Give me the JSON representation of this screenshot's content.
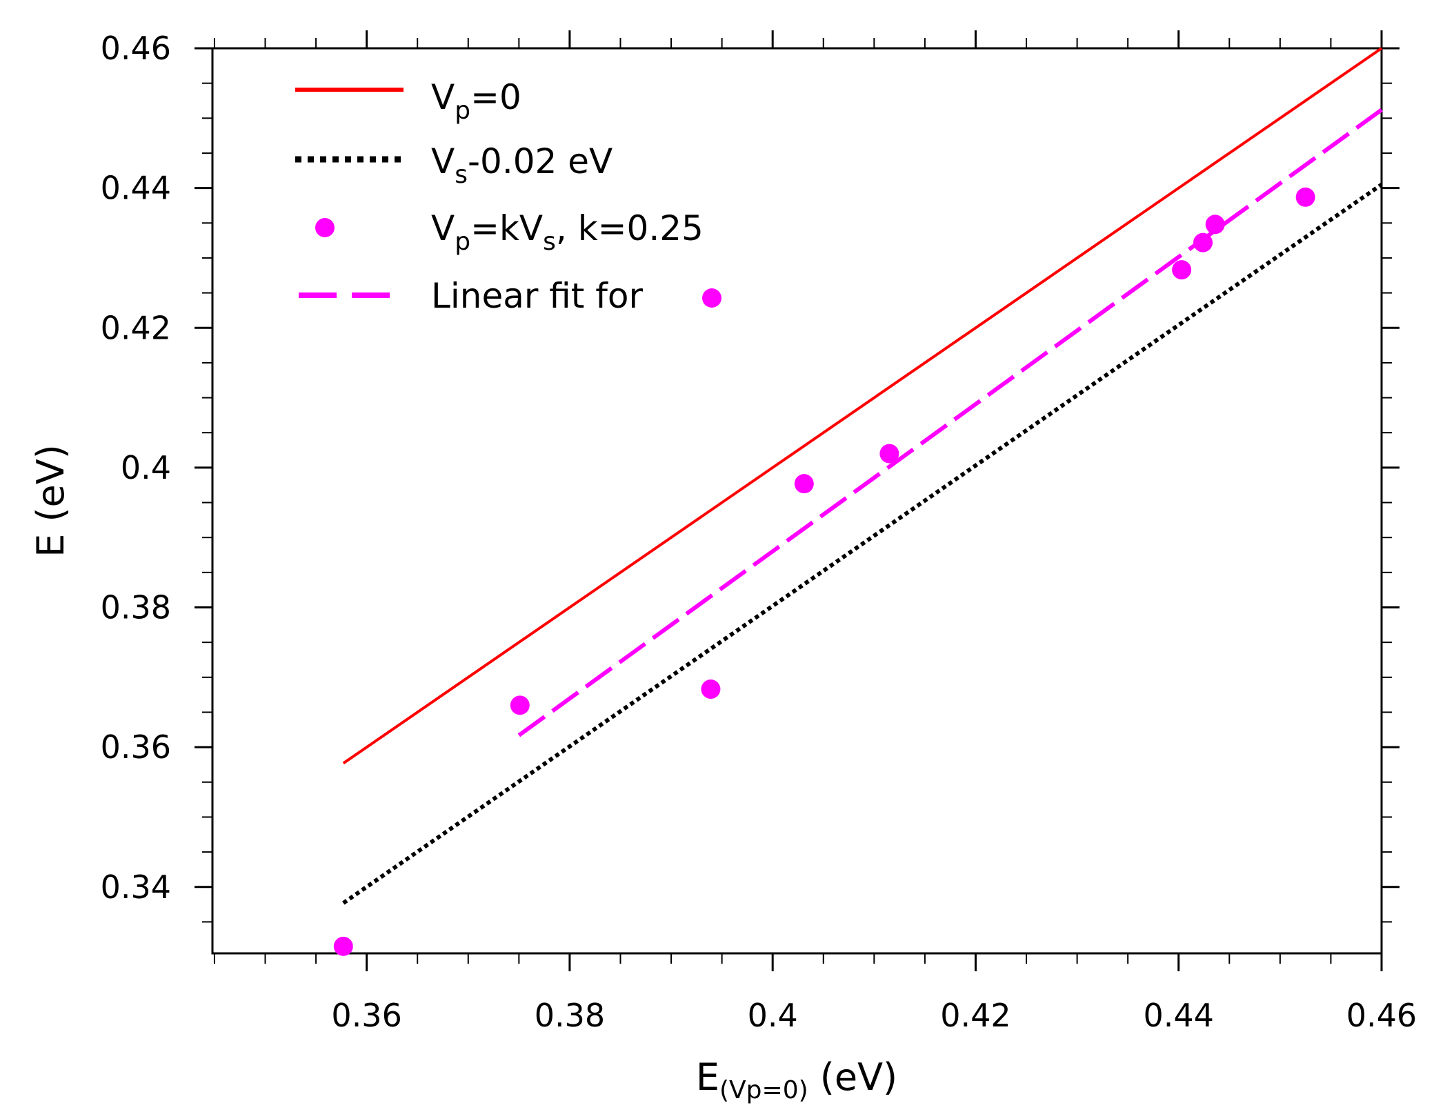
{
  "chart_data": {
    "type": "line",
    "title": "",
    "xlabel": {
      "main": "E",
      "subscript": "(Vp=0)",
      "unit": " (eV)"
    },
    "ylabel": "E (eV)",
    "xlim": [
      0.3448,
      0.46
    ],
    "ylim": [
      0.3305,
      0.46
    ],
    "x_ticks": [
      0.36,
      0.38,
      0.4,
      0.42,
      0.44,
      0.46
    ],
    "x_tick_labels": [
      "0.36",
      "0.38",
      "0.4",
      "0.42",
      "0.44",
      "0.46"
    ],
    "y_ticks": [
      0.34,
      0.36,
      0.38,
      0.4,
      0.42,
      0.44,
      0.46
    ],
    "y_tick_labels": [
      "0.34",
      "0.36",
      "0.38",
      "0.4",
      "0.42",
      "0.44",
      "0.46"
    ],
    "grid": false,
    "legend_position": "top-left",
    "series": [
      {
        "name": "Vp=0",
        "style": "solid",
        "color": "#ff0000",
        "x": [
          0.3577,
          0.46
        ],
        "y": [
          0.3577,
          0.46
        ]
      },
      {
        "name": "Vs-0.02 eV",
        "style": "dotted",
        "color": "#000000",
        "x": [
          0.3577,
          0.46
        ],
        "y": [
          0.3377,
          0.4405
        ]
      },
      {
        "name": "Vp=kVs, k=0.25",
        "style": "markers",
        "color": "#ff00ff",
        "x": [
          0.3577,
          0.3751,
          0.3939,
          0.4031,
          0.4115,
          0.4403,
          0.4424,
          0.4436,
          0.4525
        ],
        "y": [
          0.3315,
          0.366,
          0.3683,
          0.3977,
          0.402,
          0.4283,
          0.4322,
          0.4348,
          0.4387
        ]
      },
      {
        "name": "Linear fit for",
        "style": "dashed",
        "color": "#ff00ff",
        "x": [
          0.375,
          0.46
        ],
        "y": [
          0.3617,
          0.4512
        ]
      }
    ],
    "legend": [
      {
        "kind": "line-solid",
        "color": "#ff0000",
        "parts": [
          {
            "t": "V"
          },
          {
            "t": "p",
            "sub": true
          },
          {
            "t": "=0"
          }
        ]
      },
      {
        "kind": "line-dotted",
        "color": "#000000",
        "parts": [
          {
            "t": "V"
          },
          {
            "t": "s",
            "sub": true
          },
          {
            "t": "-0.02 eV"
          }
        ]
      },
      {
        "kind": "marker",
        "color": "#ff00ff",
        "parts": [
          {
            "t": "V"
          },
          {
            "t": "p",
            "sub": true
          },
          {
            "t": "=kV"
          },
          {
            "t": "s",
            "sub": true
          },
          {
            "t": ", k=0.25"
          }
        ]
      },
      {
        "kind": "line-dashed",
        "color": "#ff00ff",
        "parts": [
          {
            "t": "Linear fit for"
          }
        ],
        "trailing_marker": true
      }
    ]
  }
}
